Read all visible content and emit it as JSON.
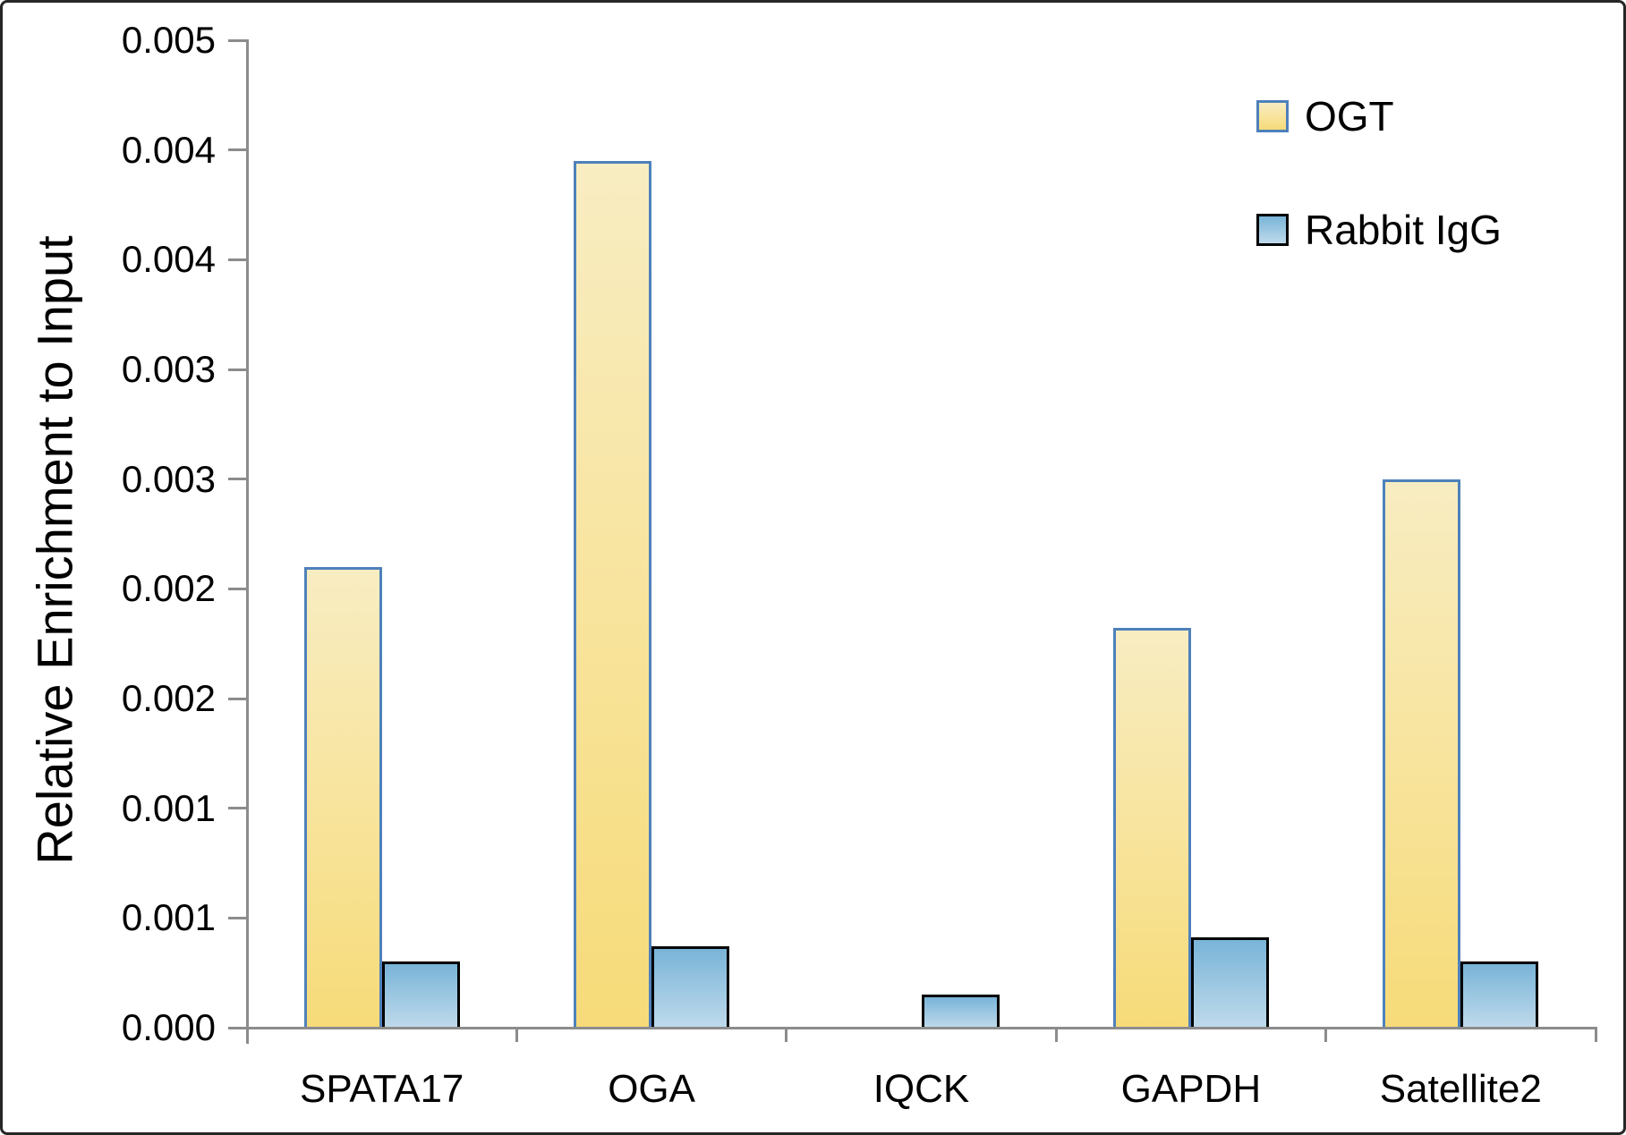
{
  "chart_data": {
    "type": "bar",
    "title": "",
    "xlabel": "",
    "ylabel": "Relative Enrichment to Input",
    "categories": [
      "SPATA17",
      "OGA",
      "IQCK",
      "GAPDH",
      "Satellite2"
    ],
    "series": [
      {
        "name": "OGT",
        "values": [
          0.0021,
          0.00395,
          0,
          0.00182,
          0.0025
        ],
        "fill_top": "#F8EDC2",
        "fill_bottom": "#F7DB79",
        "border": "#4E81BB"
      },
      {
        "name": "Rabbit IgG",
        "values": [
          0.0003,
          0.00037,
          0.00015,
          0.00041,
          0.0003
        ],
        "fill_top": "#79B4D8",
        "fill_bottom": "#BFDAEB",
        "border": "#000000"
      }
    ],
    "ylim": [
      0,
      0.0045
    ],
    "y_tick_step": 0.0005,
    "y_tick_labels_top_to_bottom": [
      "0.005",
      "0.004",
      "0.004",
      "0.003",
      "0.003",
      "0.002",
      "0.002",
      "0.001",
      "0.001",
      "0.000"
    ],
    "grid": false,
    "legend_position": "top-right",
    "axis_color": "#8C8C8C",
    "text_color": "#000000"
  }
}
